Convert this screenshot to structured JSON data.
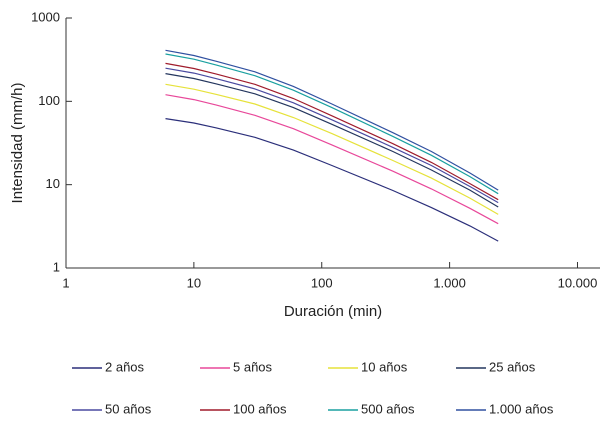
{
  "chart_data": {
    "type": "line",
    "x_label": "Duración (min)",
    "y_label": "Intensidad (mm/h)",
    "x": [
      6,
      10,
      15,
      30,
      60,
      120,
      360,
      720,
      1440,
      2400
    ],
    "x_log": true,
    "y_log": true,
    "xlim": [
      1,
      15000
    ],
    "ylim": [
      1,
      1000
    ],
    "xticks": [
      1,
      10,
      100,
      {
        "value": 1000,
        "label": "1.000"
      },
      {
        "value": 10000,
        "label": "10.000"
      }
    ],
    "yticks": [
      1,
      10,
      100,
      1000
    ],
    "grid": false,
    "legend": "bottom",
    "series": [
      {
        "name": "2 años",
        "color": "#2b2f7a",
        "values": [
          62,
          55,
          48,
          37,
          26,
          17,
          8.5,
          5.3,
          3.2,
          2.1
        ]
      },
      {
        "name": "5 años",
        "color": "#e8489a",
        "values": [
          120,
          105,
          90,
          68,
          47,
          30,
          14.5,
          8.9,
          5.2,
          3.4
        ]
      },
      {
        "name": "10 años",
        "color": "#e6e23a",
        "values": [
          160,
          140,
          121,
          93,
          64,
          41,
          19.5,
          12,
          6.9,
          4.4
        ]
      },
      {
        "name": "25 años",
        "color": "#24365e",
        "values": [
          215,
          188,
          162,
          123,
          84,
          53,
          25,
          15,
          8.6,
          5.4
        ]
      },
      {
        "name": "50 años",
        "color": "#4a4aa0",
        "values": [
          250,
          218,
          187,
          141,
          96,
          60,
          28,
          17,
          9.5,
          6.1
        ]
      },
      {
        "name": "100 años",
        "color": "#a01c2c",
        "values": [
          285,
          248,
          212,
          160,
          108,
          67,
          31,
          18.5,
          10.3,
          6.6
        ]
      },
      {
        "name": "500 años",
        "color": "#1aa0a0",
        "values": [
          370,
          320,
          272,
          203,
          136,
          84,
          38,
          22.5,
          12.5,
          7.8
        ]
      },
      {
        "name": "1.000 años",
        "color": "#3050a0",
        "values": [
          410,
          355,
          302,
          226,
          151,
          93,
          42,
          25,
          13.8,
          8.6
        ]
      }
    ]
  }
}
